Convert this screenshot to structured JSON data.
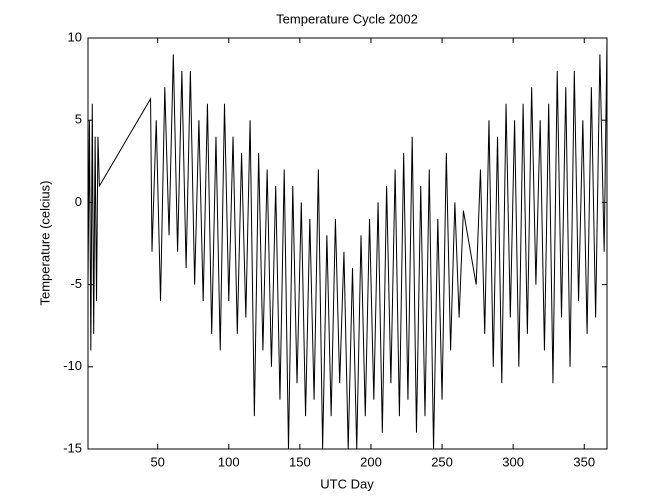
{
  "chart_data": {
    "type": "line",
    "title": "Temperature Cycle 2002",
    "x_label": "UTC Day",
    "y_label": "Temperature (celcius)",
    "xlim": [
      1,
      366
    ],
    "ylim": [
      -15,
      10
    ],
    "xticks": [
      50,
      100,
      150,
      200,
      250,
      300,
      350
    ],
    "yticks": [
      -15,
      -10,
      -5,
      0,
      5,
      10
    ],
    "grid": false,
    "series": [
      {
        "color": "#000000",
        "x": [
          1,
          2,
          3,
          4,
          5,
          6,
          7,
          8,
          9,
          45,
          46,
          49,
          52,
          55,
          58,
          61,
          64,
          67,
          70,
          73,
          76,
          79,
          82,
          85,
          88,
          91,
          94,
          97,
          100,
          103,
          106,
          109,
          112,
          115,
          118,
          121,
          124,
          127,
          130,
          133,
          136,
          139,
          142,
          145,
          148,
          151,
          154,
          157,
          160,
          163,
          166,
          169,
          172,
          175,
          178,
          181,
          184,
          187,
          190,
          193,
          196,
          199,
          202,
          205,
          208,
          211,
          214,
          217,
          220,
          223,
          226,
          229,
          232,
          235,
          238,
          241,
          244,
          247,
          250,
          253,
          256,
          259,
          262,
          265,
          274,
          277,
          280,
          283,
          286,
          289,
          292,
          295,
          298,
          301,
          304,
          307,
          310,
          313,
          316,
          319,
          322,
          325,
          328,
          331,
          334,
          337,
          340,
          343,
          346,
          349,
          352,
          355,
          358,
          361,
          364,
          366
        ],
        "values": [
          -5,
          5,
          -9,
          6,
          -8,
          4,
          -6,
          4,
          1,
          6.3,
          -3,
          5,
          -6,
          7,
          -2,
          9,
          -3,
          8,
          -4,
          8,
          -5,
          5,
          -6,
          6,
          -8,
          4,
          -9,
          6,
          -6,
          4,
          -8,
          3,
          -7,
          5,
          -13,
          3,
          -9,
          2,
          -10,
          1,
          -12,
          2,
          -15,
          1,
          -11,
          0,
          -13,
          -1,
          -12,
          2,
          -15,
          -2,
          -13,
          -1,
          -11,
          -3,
          -15,
          -4,
          -15,
          -2,
          -13,
          -1,
          -12,
          0,
          -14,
          1,
          -11,
          2,
          -13,
          3,
          -12,
          4,
          -14,
          1,
          -13,
          2,
          -15,
          -1,
          -12,
          3,
          -9,
          0,
          -7,
          -0.5,
          -5,
          2,
          -8,
          5,
          -10,
          4,
          -11,
          6,
          -7,
          5,
          -10,
          6,
          -8,
          7,
          -5,
          5,
          -9,
          6,
          -11,
          8,
          -7,
          7,
          -10,
          8,
          -6,
          5,
          -8,
          7,
          -7,
          9,
          -3,
          10
        ]
      }
    ]
  }
}
